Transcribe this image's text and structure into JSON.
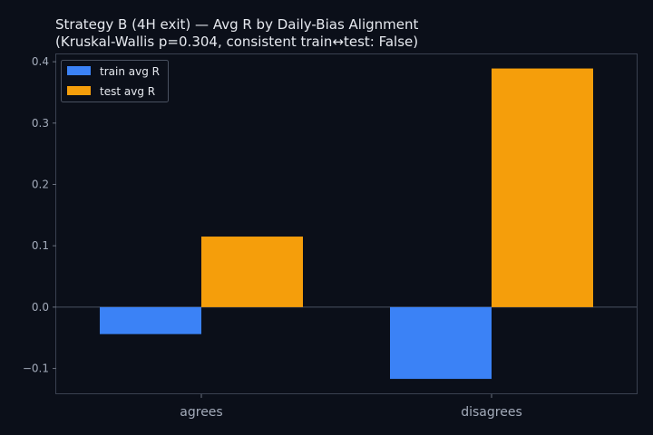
{
  "chart_data": {
    "type": "bar",
    "title": "Strategy B (4H exit) — Avg R by Daily-Bias Alignment",
    "subtitle": "(Kruskal-Wallis p=0.304, consistent train↔test: False)",
    "xlabel": "",
    "ylabel": "",
    "categories": [
      "agrees",
      "disagrees"
    ],
    "series": [
      {
        "name": "train avg R",
        "values": [
          -0.044,
          -0.117
        ],
        "color": "#3b82f6"
      },
      {
        "name": "test avg R",
        "values": [
          0.115,
          0.389
        ],
        "color": "#f59e0b"
      }
    ],
    "ylim": [
      -0.142,
      0.412
    ],
    "yticks": [
      -0.1,
      0.0,
      0.1,
      0.2,
      0.3,
      0.4
    ],
    "ytick_labels": [
      "−0.1",
      "0.0",
      "0.1",
      "0.2",
      "0.3",
      "0.4"
    ],
    "grid": false,
    "legend_position": "top-left",
    "colors": {
      "background": "#0b0f19",
      "axis": "#3a4150",
      "zero_line": "#4a5160",
      "text": "#e6e9ef",
      "tick_text": "#a3abba"
    }
  }
}
